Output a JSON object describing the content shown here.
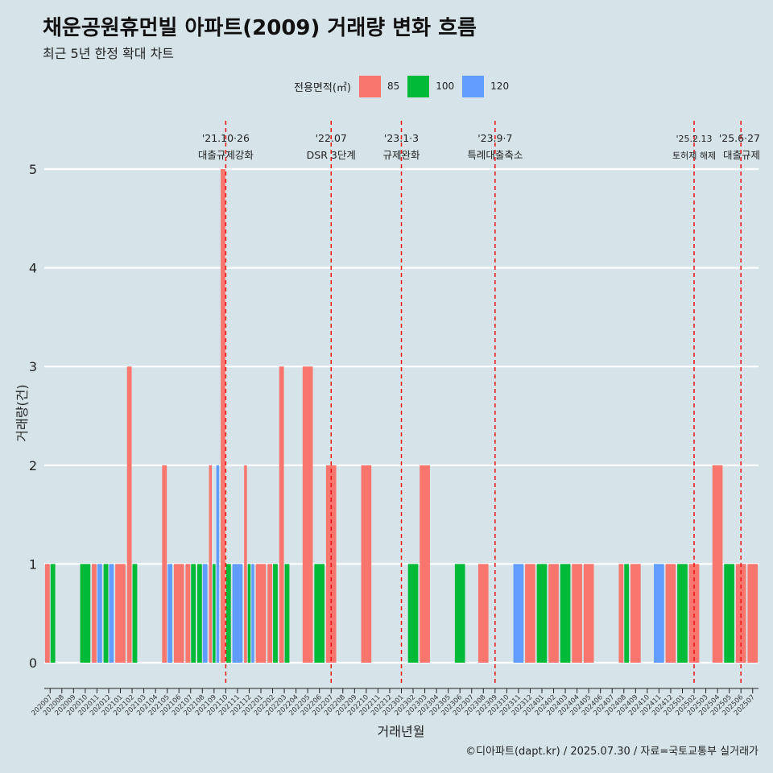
{
  "page": {
    "title": "채운공원휴먼빌 아파트(2009) 거래량 변화 흐름",
    "subtitle": "최근 5년 한정 확대 차트",
    "caption": "©디아파트(dapt.kr) / 2025.07.30 / 자료=국토교통부 실거래가"
  },
  "legend": {
    "title": "전용면적(㎡)",
    "items": [
      {
        "label": "85",
        "color": "#f8766d"
      },
      {
        "label": "100",
        "color": "#00ba38"
      },
      {
        "label": "120",
        "color": "#619cff"
      }
    ]
  },
  "chart_data": {
    "type": "bar",
    "xlabel": "거래년월",
    "ylabel": "거래량(건)",
    "ylim": [
      0,
      5
    ],
    "yticks": [
      0,
      1,
      2,
      3,
      4,
      5
    ],
    "grid": "horizontal",
    "legend_position": "top",
    "x": [
      "202007",
      "202008",
      "202009",
      "202010",
      "202011",
      "202012",
      "202101",
      "202102",
      "202103",
      "202104",
      "202105",
      "202106",
      "202107",
      "202108",
      "202109",
      "202110",
      "202111",
      "202112",
      "202201",
      "202202",
      "202203",
      "202204",
      "202205",
      "202206",
      "202207",
      "202208",
      "202209",
      "202210",
      "202211",
      "202212",
      "202301",
      "202302",
      "202303",
      "202304",
      "202305",
      "202306",
      "202307",
      "202308",
      "202309",
      "202310",
      "202311",
      "202312",
      "202401",
      "202402",
      "202403",
      "202404",
      "202405",
      "202406",
      "202407",
      "202408",
      "202409",
      "202410",
      "202411",
      "202412",
      "202501",
      "202502",
      "202503",
      "202504",
      "202505",
      "202506",
      "202507"
    ],
    "series": [
      {
        "name": "85",
        "color": "#f8766d",
        "values": [
          1,
          0,
          0,
          0,
          1,
          0,
          1,
          3,
          0,
          0,
          2,
          1,
          1,
          0,
          2,
          5,
          0,
          2,
          1,
          1,
          3,
          0,
          3,
          0,
          2,
          0,
          0,
          2,
          0,
          0,
          0,
          0,
          2,
          0,
          0,
          0,
          0,
          1,
          0,
          0,
          0,
          1,
          0,
          1,
          0,
          1,
          1,
          0,
          0,
          1,
          1,
          0,
          0,
          1,
          0,
          1,
          0,
          2,
          0,
          1,
          1
        ]
      },
      {
        "name": "100",
        "color": "#00ba38",
        "values": [
          1,
          0,
          0,
          1,
          0,
          1,
          0,
          1,
          0,
          0,
          0,
          0,
          1,
          1,
          1,
          1,
          0,
          1,
          0,
          1,
          1,
          0,
          0,
          1,
          0,
          0,
          0,
          0,
          0,
          0,
          0,
          1,
          0,
          0,
          0,
          1,
          0,
          0,
          0,
          0,
          0,
          0,
          1,
          0,
          1,
          0,
          0,
          0,
          0,
          1,
          0,
          0,
          0,
          0,
          1,
          0,
          0,
          0,
          1,
          0,
          0
        ]
      },
      {
        "name": "120",
        "color": "#619cff",
        "values": [
          0,
          0,
          0,
          0,
          1,
          1,
          0,
          0,
          0,
          0,
          1,
          0,
          0,
          1,
          2,
          0,
          1,
          1,
          0,
          0,
          0,
          0,
          0,
          0,
          0,
          0,
          0,
          0,
          0,
          0,
          0,
          0,
          0,
          0,
          0,
          0,
          0,
          0,
          0,
          0,
          1,
          0,
          0,
          0,
          0,
          0,
          0,
          0,
          0,
          0,
          0,
          0,
          1,
          0,
          0,
          0,
          0,
          0,
          0,
          0,
          0
        ]
      }
    ],
    "annotations": [
      {
        "x": "202110",
        "date": "'21.10·26",
        "text": "대출규제강화"
      },
      {
        "x": "202207",
        "date": "'22.07",
        "text": "DSR 3단계"
      },
      {
        "x": "202301",
        "date": "'23.1·3",
        "text": "규제완화"
      },
      {
        "x": "202309",
        "date": "'23.9·7",
        "text": "특례대출축소"
      },
      {
        "x": "202502",
        "date": "'25.2.13",
        "text": "토허제 해제"
      },
      {
        "x": "202506",
        "date": "'25.6·27",
        "text": "대출규제"
      }
    ]
  }
}
